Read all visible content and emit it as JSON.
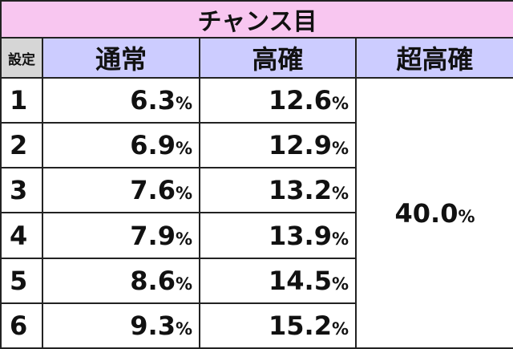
{
  "title": "チャンス目",
  "header": [
    "設定",
    "通常",
    "高確",
    "超高確"
  ],
  "rows": [
    [
      "1",
      "6.3%",
      "12.6%"
    ],
    [
      "2",
      "6.9%",
      "12.9%"
    ],
    [
      "3",
      "7.6%",
      "13.2%"
    ],
    [
      "4",
      "7.9%",
      "13.9%"
    ],
    [
      "5",
      "8.6%",
      "14.5%"
    ],
    [
      "6",
      "9.3%",
      "15.2%"
    ]
  ],
  "super_high": "40.0%"
}
